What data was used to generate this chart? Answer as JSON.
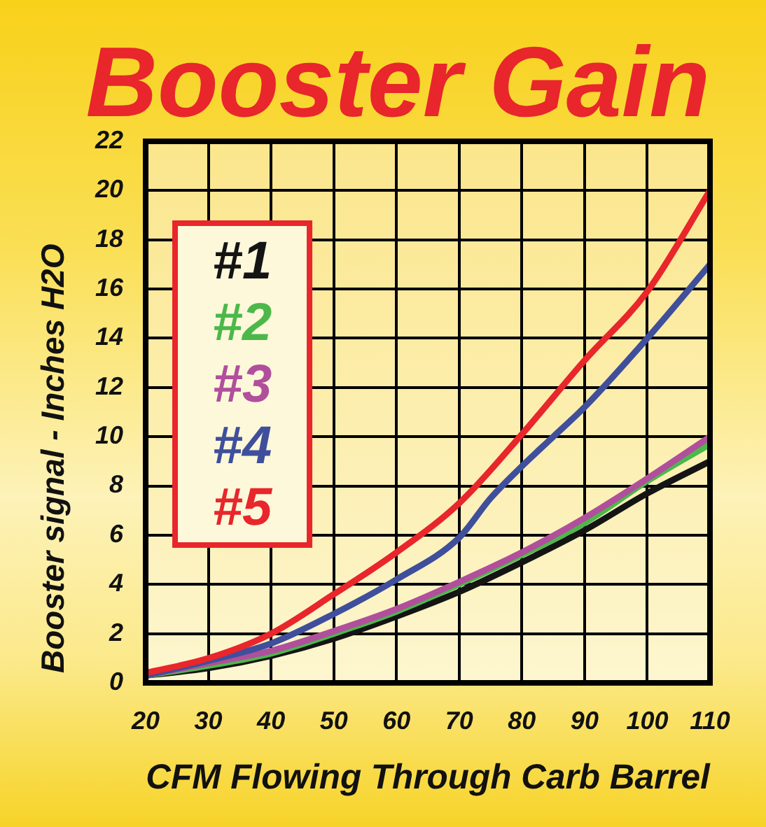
{
  "chart_data": {
    "type": "line",
    "title": "Booster Gain",
    "xlabel": "CFM Flowing Through Carb Barrel",
    "ylabel": "Booster signal - Inches H2O",
    "x": [
      20,
      30,
      40,
      50,
      60,
      70,
      80,
      90,
      100,
      110
    ],
    "series": [
      {
        "name": "#1",
        "color": "#141414",
        "values": [
          0.3,
          0.6,
          1.1,
          1.8,
          2.7,
          3.7,
          4.9,
          6.2,
          7.7,
          9.0
        ]
      },
      {
        "name": "#2",
        "color": "#4cb84a",
        "values": [
          0.3,
          0.7,
          1.2,
          2.0,
          2.9,
          4.0,
          5.2,
          6.5,
          8.2,
          9.7
        ]
      },
      {
        "name": "#3",
        "color": "#b04f9c",
        "values": [
          0.3,
          0.8,
          1.3,
          2.1,
          3.0,
          4.1,
          5.3,
          6.7,
          8.3,
          10.0
        ]
      },
      {
        "name": "#4",
        "color": "#3f4f9b",
        "x": [
          20,
          30,
          40,
          50,
          60,
          70,
          75,
          80,
          85,
          90,
          100,
          110
        ],
        "values": [
          0.3,
          0.9,
          1.6,
          2.8,
          4.2,
          5.9,
          7.5,
          8.8,
          10.0,
          11.2,
          14.0,
          17.0
        ]
      },
      {
        "name": "#5",
        "color": "#e8262b",
        "x": [
          20,
          30,
          40,
          50,
          60,
          70,
          80,
          90,
          100,
          110
        ],
        "values": [
          0.4,
          1.0,
          2.0,
          3.6,
          5.3,
          7.3,
          10.1,
          13.1,
          15.9,
          20.0
        ]
      }
    ],
    "xlim": [
      20,
      110
    ],
    "xticks": [
      20,
      30,
      40,
      50,
      60,
      70,
      80,
      90,
      100,
      110
    ],
    "ylim": [
      0,
      22
    ],
    "yticks": [
      0,
      2,
      4,
      6,
      8,
      10,
      12,
      14,
      16,
      18,
      20,
      22
    ],
    "grid": true,
    "legend": "left",
    "marker": "none",
    "line_style": "solid"
  }
}
